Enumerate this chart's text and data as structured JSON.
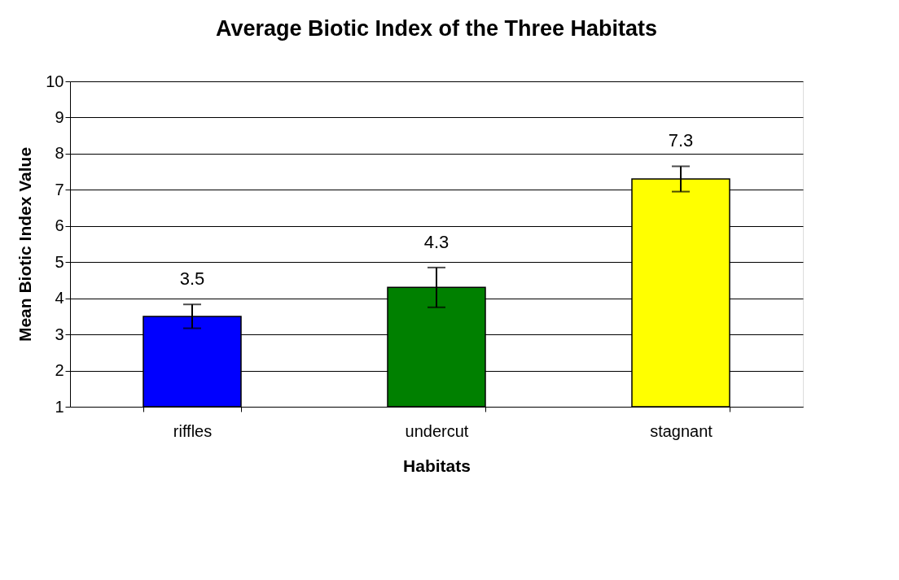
{
  "chart_data": {
    "type": "bar",
    "title": "Average Biotic Index of the Three Habitats",
    "xlabel": "Habitats",
    "ylabel": "Mean Biotic Index Value",
    "categories": [
      "riffles",
      "undercut",
      "stagnant"
    ],
    "values": [
      3.5,
      4.3,
      7.3
    ],
    "colors": [
      "#0000ff",
      "#008000",
      "#ffff00"
    ],
    "errors": [
      0.33,
      0.55,
      0.35
    ],
    "data_labels": true,
    "ylim": [
      1,
      10
    ],
    "yticks": [
      1,
      2,
      3,
      4,
      5,
      6,
      7,
      8,
      9,
      10
    ],
    "grid": "y"
  }
}
